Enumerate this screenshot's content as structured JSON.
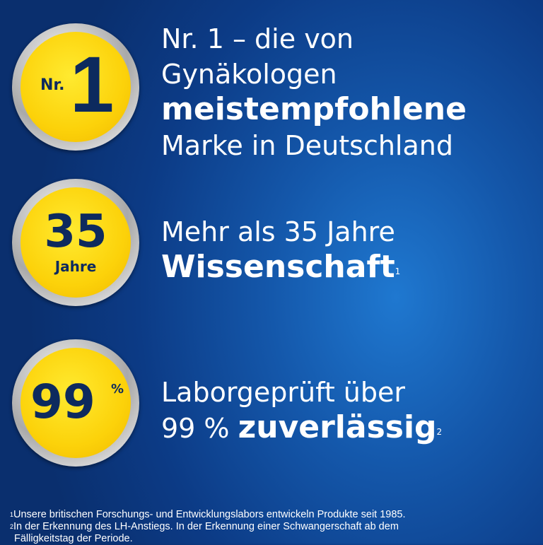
{
  "badges": [
    {
      "prefix": "Nr.",
      "value": "1"
    },
    {
      "value": "35",
      "suffix": "Jahre"
    },
    {
      "value": "99",
      "suffix": "%"
    }
  ],
  "claims": [
    {
      "lines": [
        "Nr. 1 – die von",
        "Gynäkologen"
      ],
      "bold": "meistempfohlene",
      "after": "Marke in Deutschland"
    },
    {
      "line": "Mehr als 35 Jahre",
      "bold": "Wissenschaft",
      "note": "1"
    },
    {
      "line": "Laborgeprüft über",
      "prefix": "99 %",
      "bold": "zuverlässig",
      "note": "2"
    }
  ],
  "footnotes": [
    {
      "mark": "1",
      "text": "Unsere britischen Forschungs- und Entwicklungslabors entwickeln Produkte seit 1985."
    },
    {
      "mark": "2",
      "text": "In der Erkennung des LH-Anstiegs. In der Erkennung einer Schwangerschaft ab dem"
    },
    {
      "text": "Fälligkeitstag der Periode."
    }
  ],
  "colors": {
    "badge_yellow": "#fcd20a",
    "badge_text": "#0d2a5e",
    "background": "#1457aa"
  }
}
